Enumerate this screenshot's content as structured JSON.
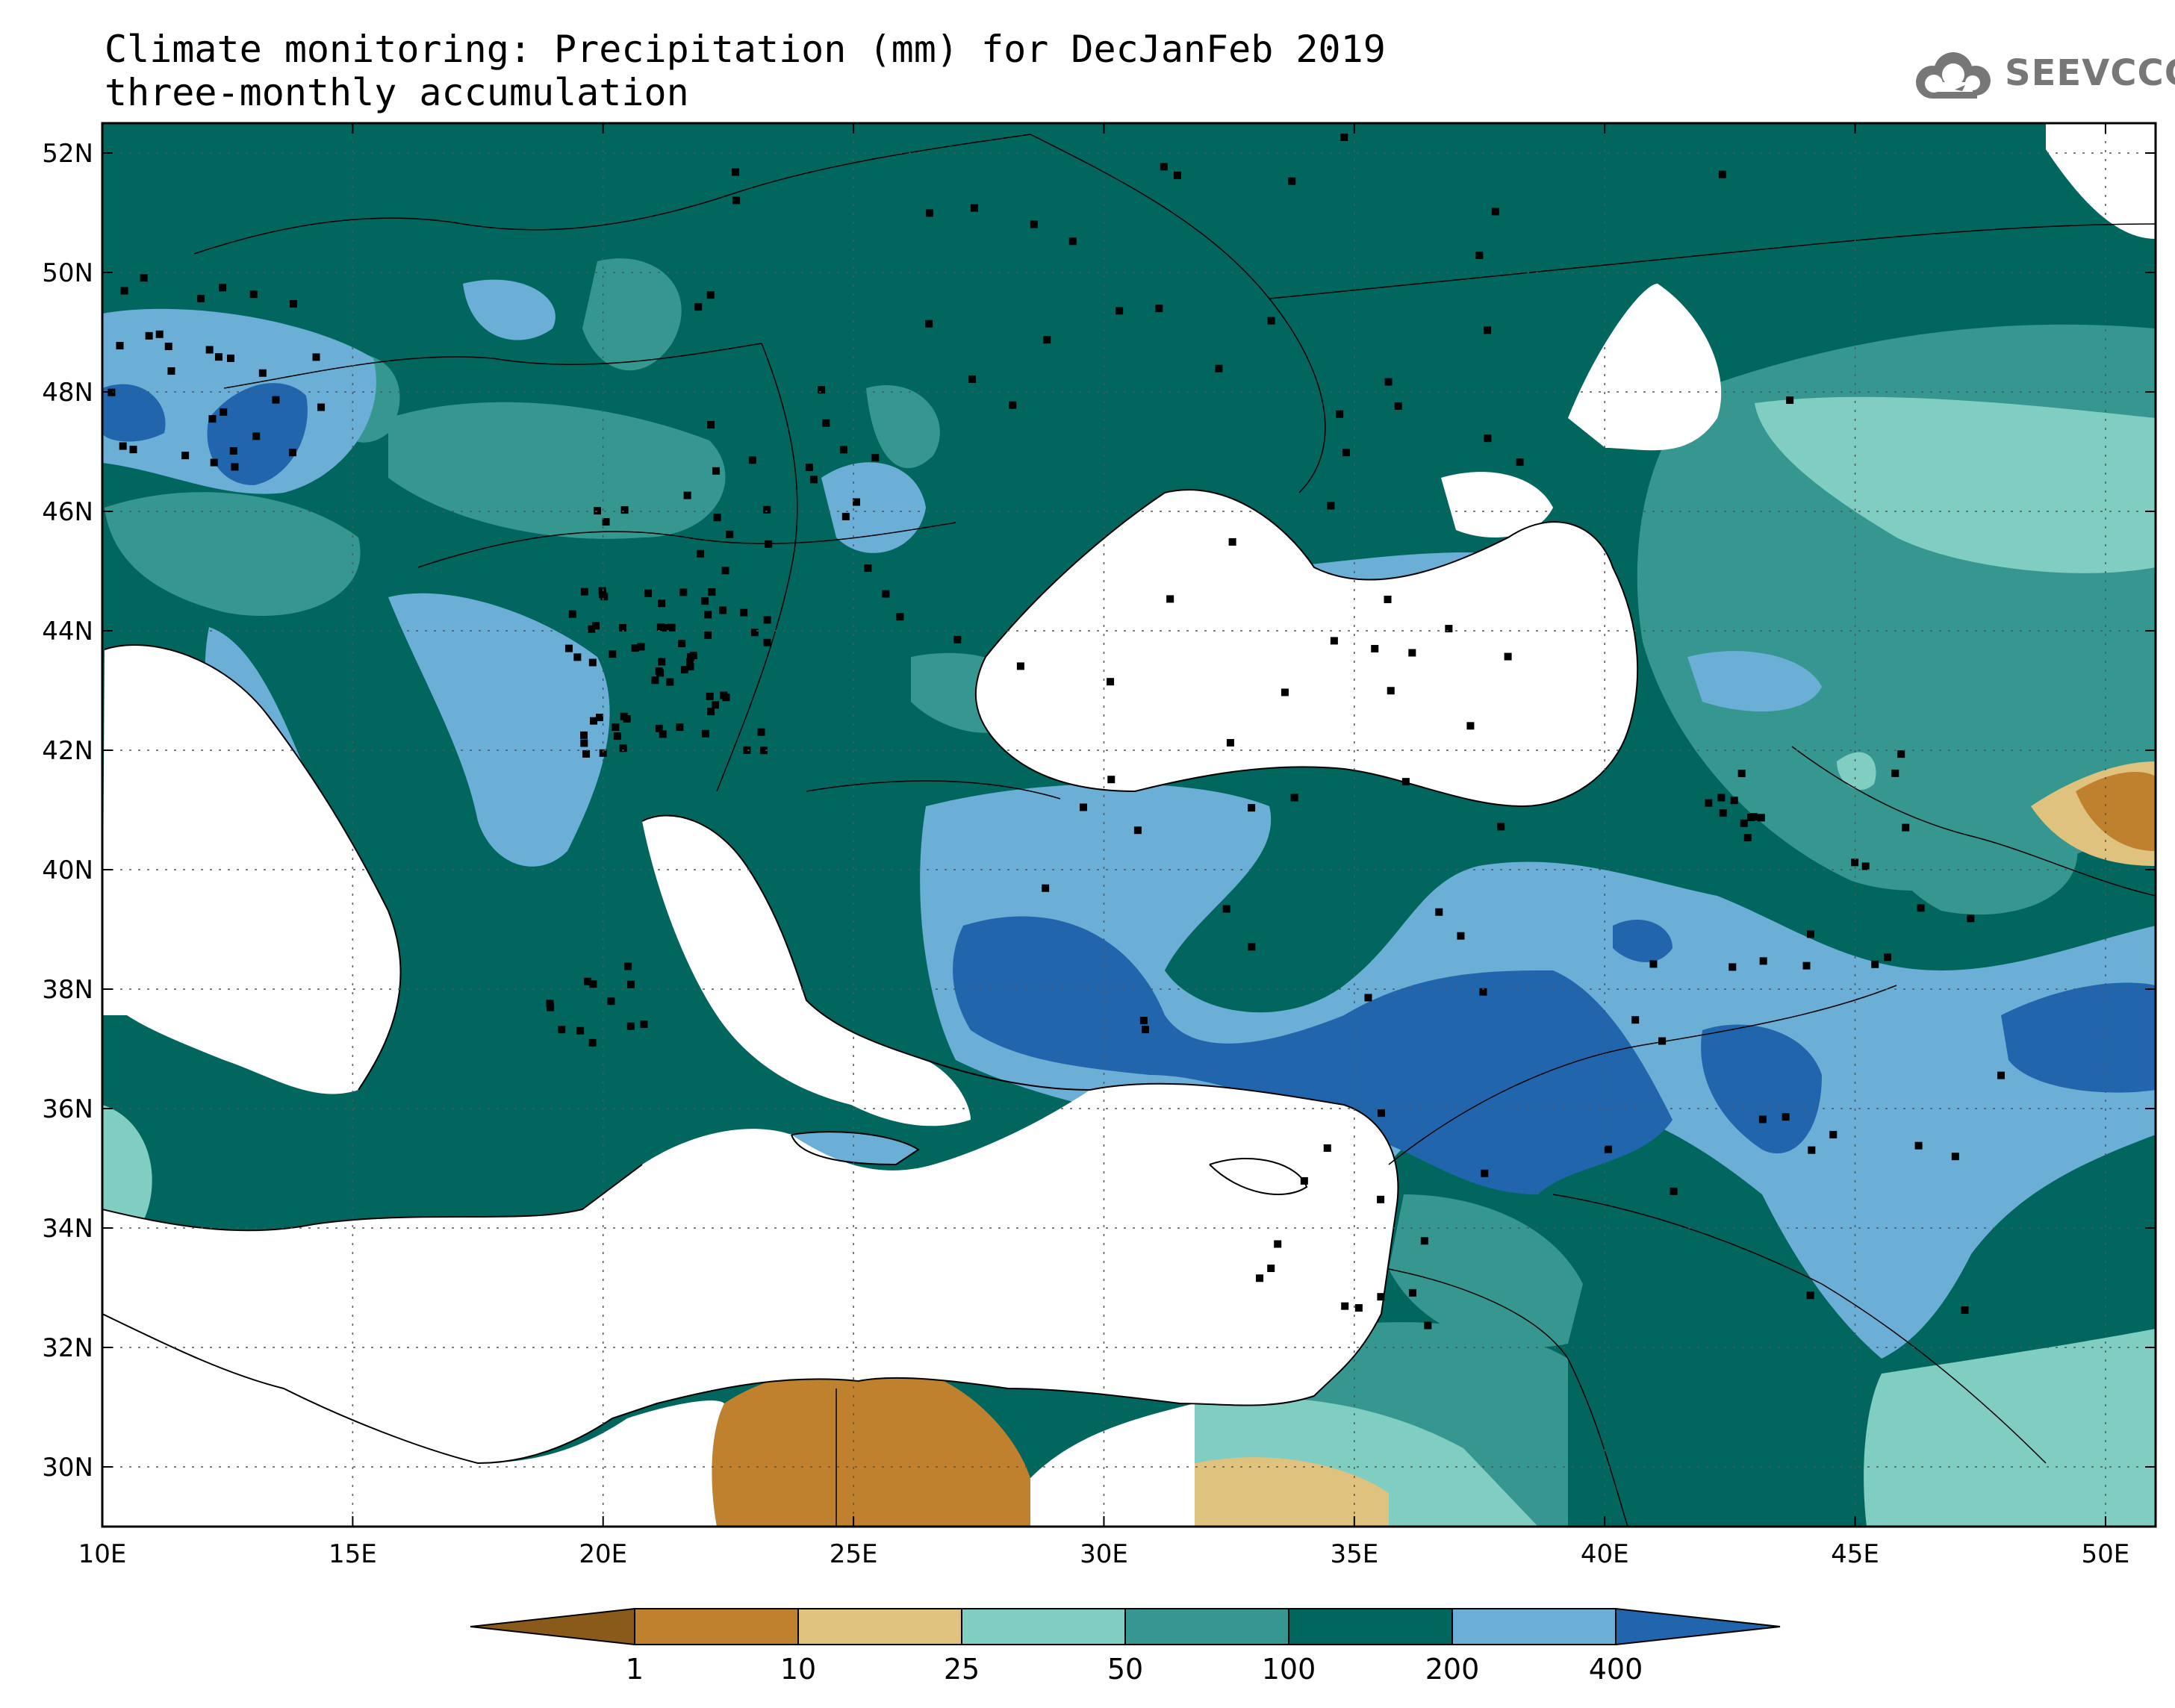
{
  "header": {
    "title_line1": "Climate monitoring: Precipitation (mm) for DecJanFeb 2019",
    "title_line2": "three-monthly accumulation"
  },
  "logo": {
    "text": "SEEVCCC",
    "icon": "cloud-icon"
  },
  "map": {
    "lon_labels": [
      "10E",
      "15E",
      "20E",
      "25E",
      "30E",
      "35E",
      "40E",
      "45E",
      "50E"
    ],
    "lat_labels": [
      "52N",
      "50N",
      "48N",
      "46N",
      "44N",
      "42N",
      "40N",
      "38N",
      "36N",
      "34N",
      "32N",
      "30N"
    ],
    "lon_range": [
      10,
      51
    ],
    "lat_range": [
      29,
      52.5
    ],
    "grid": "dotted"
  },
  "colorbar": {
    "boundaries": [
      "1",
      "10",
      "25",
      "50",
      "100",
      "200",
      "400"
    ],
    "colors": [
      "#8a5a1a",
      "#bf812d",
      "#dfc27d",
      "#80cdc1",
      "#35978f",
      "#01665e",
      "#6baed6",
      "#2166ac"
    ],
    "unit": "mm"
  },
  "colors": {
    "ocean": "#ffffff",
    "coast": "#000000",
    "station": "#000000"
  }
}
